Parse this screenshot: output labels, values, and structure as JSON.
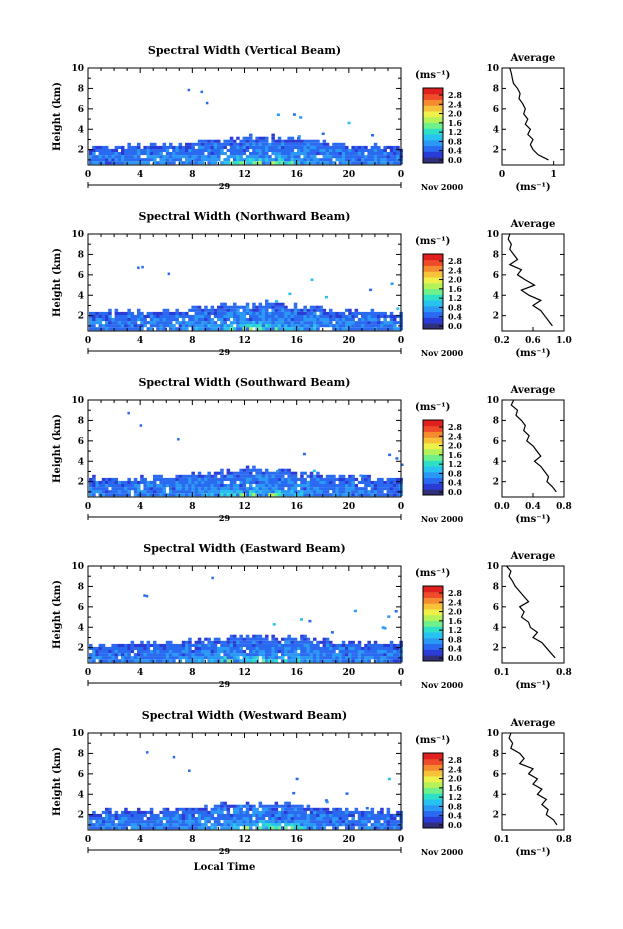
{
  "figure": {
    "colorbar_unit": "(ms⁻¹)",
    "colorbar_ticks": [
      "2.8",
      "2.4",
      "2.0",
      "1.6",
      "1.2",
      "0.8",
      "0.4",
      "0.0"
    ],
    "colors": [
      "#30307a",
      "#2a3bd6",
      "#2a6af0",
      "#2a98f5",
      "#27c2ef",
      "#2fe0c8",
      "#6ff08a",
      "#b5f25a",
      "#eef14a",
      "#f5c23a",
      "#f58a2e",
      "#ef4a2a",
      "#e0201e"
    ],
    "height_axis_label": "Height (km)",
    "height_ticks": [
      "2",
      "4",
      "6",
      "8",
      "10"
    ],
    "time_ticks": [
      "0",
      "4",
      "8",
      "12",
      "16",
      "20",
      "0"
    ],
    "day_label": "29",
    "month_label": "Nov 2000",
    "xaxis_label": "Local Time",
    "avg_title": "Average",
    "avg_xlabel": "(ms⁻¹)"
  },
  "chart_data": [
    {
      "type": "heatmap",
      "title": "Spectral Width (Vertical Beam)",
      "ylabel": "Height (km)",
      "ylim": [
        0.5,
        10
      ],
      "xlim": [
        0,
        24
      ],
      "clim": [
        0,
        3.0
      ],
      "avg_profile": {
        "xlim": [
          0,
          1.2
        ],
        "xticks": [
          "0",
          "1"
        ],
        "heights": [
          10,
          9.5,
          9,
          8.5,
          8,
          7.5,
          7,
          6.5,
          6,
          5.5,
          5,
          4.5,
          4,
          3.5,
          3,
          2.5,
          2,
          1.5,
          1
        ],
        "values": [
          0.15,
          0.18,
          0.2,
          0.22,
          0.3,
          0.35,
          0.33,
          0.4,
          0.45,
          0.42,
          0.5,
          0.45,
          0.55,
          0.5,
          0.6,
          0.55,
          0.6,
          0.7,
          0.9
        ]
      }
    },
    {
      "type": "heatmap",
      "title": "Spectral Width (Northward Beam)",
      "ylabel": "Height (km)",
      "ylim": [
        0.5,
        10
      ],
      "xlim": [
        0,
        24
      ],
      "clim": [
        0,
        3.0
      ],
      "avg_profile": {
        "xlim": [
          0.2,
          1.0
        ],
        "xticks": [
          "0.2",
          "0.6",
          "1.0"
        ],
        "heights": [
          10,
          9.5,
          9,
          8.5,
          8,
          7.5,
          7,
          6.5,
          6,
          5.5,
          5,
          4.5,
          4,
          3.5,
          3,
          2.5,
          2,
          1.5,
          1
        ],
        "values": [
          0.3,
          0.28,
          0.32,
          0.3,
          0.35,
          0.4,
          0.3,
          0.45,
          0.4,
          0.5,
          0.62,
          0.45,
          0.55,
          0.7,
          0.6,
          0.7,
          0.75,
          0.8,
          0.85
        ]
      }
    },
    {
      "type": "heatmap",
      "title": "Spectral Width (Southward Beam)",
      "ylabel": "Height (km)",
      "ylim": [
        0.5,
        10
      ],
      "xlim": [
        0,
        24
      ],
      "clim": [
        0,
        3.0
      ],
      "avg_profile": {
        "xlim": [
          0.0,
          0.8
        ],
        "xticks": [
          "0.0",
          "0.4",
          "0.8"
        ],
        "heights": [
          10,
          9.5,
          9,
          8.5,
          8,
          7.5,
          7,
          6.5,
          6,
          5.5,
          5,
          4.5,
          4,
          3.5,
          3,
          2.5,
          2,
          1.5,
          1
        ],
        "values": [
          0.15,
          0.12,
          0.2,
          0.18,
          0.25,
          0.3,
          0.28,
          0.35,
          0.32,
          0.4,
          0.45,
          0.5,
          0.42,
          0.5,
          0.55,
          0.6,
          0.58,
          0.65,
          0.7
        ]
      }
    },
    {
      "type": "heatmap",
      "title": "Spectral Width (Eastward Beam)",
      "ylabel": "Height (km)",
      "ylim": [
        0.5,
        10
      ],
      "xlim": [
        0,
        24
      ],
      "clim": [
        0,
        3.0
      ],
      "avg_profile": {
        "xlim": [
          0.1,
          0.8
        ],
        "xticks": [
          "0.1",
          "0.8"
        ],
        "heights": [
          10,
          9.5,
          9,
          8.5,
          8,
          7.5,
          7,
          6.5,
          6,
          5.5,
          5,
          4.5,
          4,
          3.5,
          3,
          2.5,
          2,
          1.5,
          1
        ],
        "values": [
          0.15,
          0.2,
          0.18,
          0.22,
          0.25,
          0.3,
          0.35,
          0.4,
          0.3,
          0.35,
          0.32,
          0.4,
          0.42,
          0.5,
          0.45,
          0.55,
          0.6,
          0.65,
          0.7
        ]
      }
    },
    {
      "type": "heatmap",
      "title": "Spectral Width (Westward Beam)",
      "ylabel": "Height (km)",
      "ylim": [
        0.5,
        10
      ],
      "xlim": [
        0,
        24
      ],
      "clim": [
        0,
        3.0
      ],
      "avg_profile": {
        "xlim": [
          0.1,
          0.8
        ],
        "xticks": [
          "0.1",
          "0.8"
        ],
        "heights": [
          10,
          9.5,
          9,
          8.5,
          8,
          7.5,
          7,
          6.5,
          6,
          5.5,
          5,
          4.5,
          4,
          3.5,
          3,
          2.5,
          2,
          1.5,
          1
        ],
        "values": [
          0.2,
          0.18,
          0.22,
          0.2,
          0.3,
          0.35,
          0.3,
          0.45,
          0.4,
          0.5,
          0.45,
          0.55,
          0.5,
          0.6,
          0.55,
          0.62,
          0.6,
          0.68,
          0.72
        ]
      }
    }
  ]
}
